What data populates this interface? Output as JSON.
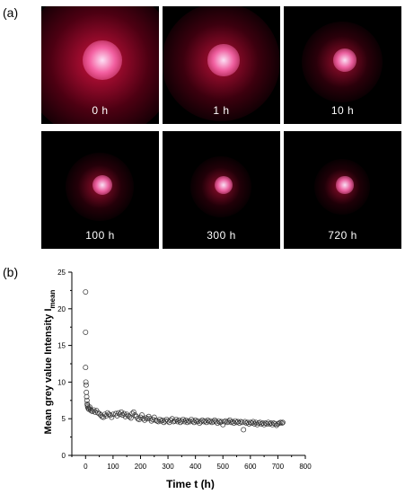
{
  "panel_a_label": "(a)",
  "panel_b_label": "(b)",
  "images": [
    {
      "label": "0 h",
      "spread": 1.0
    },
    {
      "label": "1 h",
      "spread": 0.72
    },
    {
      "label": "10 h",
      "spread": 0.42
    },
    {
      "label": "100 h",
      "spread": 0.32
    },
    {
      "label": "300 h",
      "spread": 0.26
    },
    {
      "label": "720 h",
      "spread": 0.22
    }
  ],
  "chart_data": {
    "type": "scatter",
    "xlabel": "Time t (h)",
    "ylabel_main": "Mean grey value Intensity I",
    "ylabel_sub": "mean",
    "xlim": [
      -50,
      800
    ],
    "ylim": [
      0,
      25
    ],
    "xticks": [
      0,
      100,
      200,
      300,
      400,
      500,
      600,
      700,
      800
    ],
    "yticks": [
      0,
      5,
      10,
      15,
      20,
      25
    ],
    "marker_color": "#333333",
    "points": [
      [
        0,
        22.3
      ],
      [
        0,
        16.8
      ],
      [
        0,
        12.0
      ],
      [
        1,
        10.0
      ],
      [
        2,
        9.6
      ],
      [
        3,
        8.6
      ],
      [
        4,
        8.0
      ],
      [
        5,
        7.5
      ],
      [
        6,
        7.0
      ],
      [
        7,
        6.8
      ],
      [
        8,
        6.6
      ],
      [
        10,
        6.4
      ],
      [
        12,
        6.3
      ],
      [
        15,
        6.6
      ],
      [
        18,
        6.3
      ],
      [
        20,
        6.1
      ],
      [
        25,
        6.0
      ],
      [
        30,
        6.2
      ],
      [
        35,
        5.9
      ],
      [
        40,
        6.1
      ],
      [
        45,
        5.8
      ],
      [
        50,
        5.7
      ],
      [
        55,
        5.5
      ],
      [
        60,
        5.3
      ],
      [
        65,
        5.2
      ],
      [
        70,
        5.6
      ],
      [
        75,
        5.4
      ],
      [
        80,
        5.8
      ],
      [
        85,
        5.6
      ],
      [
        90,
        5.5
      ],
      [
        95,
        5.2
      ],
      [
        100,
        5.6
      ],
      [
        110,
        5.7
      ],
      [
        115,
        5.4
      ],
      [
        120,
        5.8
      ],
      [
        125,
        5.6
      ],
      [
        130,
        5.9
      ],
      [
        135,
        5.5
      ],
      [
        140,
        5.7
      ],
      [
        145,
        5.3
      ],
      [
        150,
        5.6
      ],
      [
        155,
        5.4
      ],
      [
        160,
        5.3
      ],
      [
        165,
        5.1
      ],
      [
        170,
        5.7
      ],
      [
        175,
        5.9
      ],
      [
        180,
        5.5
      ],
      [
        185,
        5.3
      ],
      [
        190,
        5.0
      ],
      [
        195,
        4.9
      ],
      [
        200,
        5.2
      ],
      [
        205,
        5.5
      ],
      [
        210,
        5.0
      ],
      [
        215,
        4.8
      ],
      [
        220,
        5.1
      ],
      [
        225,
        5.0
      ],
      [
        230,
        5.3
      ],
      [
        235,
        5.0
      ],
      [
        240,
        4.7
      ],
      [
        245,
        4.9
      ],
      [
        250,
        5.2
      ],
      [
        255,
        4.8
      ],
      [
        260,
        4.7
      ],
      [
        265,
        4.6
      ],
      [
        270,
        4.9
      ],
      [
        275,
        4.7
      ],
      [
        280,
        4.8
      ],
      [
        285,
        4.5
      ],
      [
        290,
        4.7
      ],
      [
        295,
        4.9
      ],
      [
        300,
        4.7
      ],
      [
        305,
        4.5
      ],
      [
        310,
        4.8
      ],
      [
        315,
        5.0
      ],
      [
        320,
        4.6
      ],
      [
        325,
        4.7
      ],
      [
        330,
        4.9
      ],
      [
        335,
        4.6
      ],
      [
        340,
        4.8
      ],
      [
        345,
        4.5
      ],
      [
        350,
        4.7
      ],
      [
        355,
        4.9
      ],
      [
        360,
        4.6
      ],
      [
        365,
        4.8
      ],
      [
        370,
        4.5
      ],
      [
        375,
        4.7
      ],
      [
        380,
        4.6
      ],
      [
        385,
        4.9
      ],
      [
        390,
        4.7
      ],
      [
        395,
        4.5
      ],
      [
        400,
        4.8
      ],
      [
        405,
        4.6
      ],
      [
        410,
        4.7
      ],
      [
        415,
        4.4
      ],
      [
        420,
        4.6
      ],
      [
        425,
        4.8
      ],
      [
        430,
        4.6
      ],
      [
        435,
        4.7
      ],
      [
        440,
        4.5
      ],
      [
        445,
        4.8
      ],
      [
        450,
        4.6
      ],
      [
        455,
        4.7
      ],
      [
        460,
        4.5
      ],
      [
        465,
        4.6
      ],
      [
        470,
        4.8
      ],
      [
        475,
        4.6
      ],
      [
        480,
        4.4
      ],
      [
        485,
        4.7
      ],
      [
        490,
        4.5
      ],
      [
        495,
        4.6
      ],
      [
        500,
        4.2
      ],
      [
        505,
        4.6
      ],
      [
        510,
        4.7
      ],
      [
        515,
        4.5
      ],
      [
        520,
        4.6
      ],
      [
        525,
        4.8
      ],
      [
        530,
        4.5
      ],
      [
        535,
        4.6
      ],
      [
        540,
        4.4
      ],
      [
        545,
        4.7
      ],
      [
        550,
        4.5
      ],
      [
        555,
        4.6
      ],
      [
        560,
        4.4
      ],
      [
        565,
        4.6
      ],
      [
        570,
        4.5
      ],
      [
        575,
        3.5
      ],
      [
        580,
        4.6
      ],
      [
        585,
        4.4
      ],
      [
        590,
        4.5
      ],
      [
        595,
        4.3
      ],
      [
        600,
        4.5
      ],
      [
        605,
        4.4
      ],
      [
        610,
        4.6
      ],
      [
        615,
        4.3
      ],
      [
        620,
        4.5
      ],
      [
        625,
        4.2
      ],
      [
        630,
        4.4
      ],
      [
        635,
        4.5
      ],
      [
        640,
        4.3
      ],
      [
        645,
        4.4
      ],
      [
        650,
        4.2
      ],
      [
        655,
        4.4
      ],
      [
        660,
        4.3
      ],
      [
        665,
        4.5
      ],
      [
        670,
        4.3
      ],
      [
        675,
        4.4
      ],
      [
        680,
        4.2
      ],
      [
        685,
        4.4
      ],
      [
        690,
        4.3
      ],
      [
        695,
        4.1
      ],
      [
        700,
        4.3
      ],
      [
        705,
        4.4
      ],
      [
        710,
        4.5
      ],
      [
        715,
        4.4
      ],
      [
        718,
        4.5
      ]
    ]
  }
}
